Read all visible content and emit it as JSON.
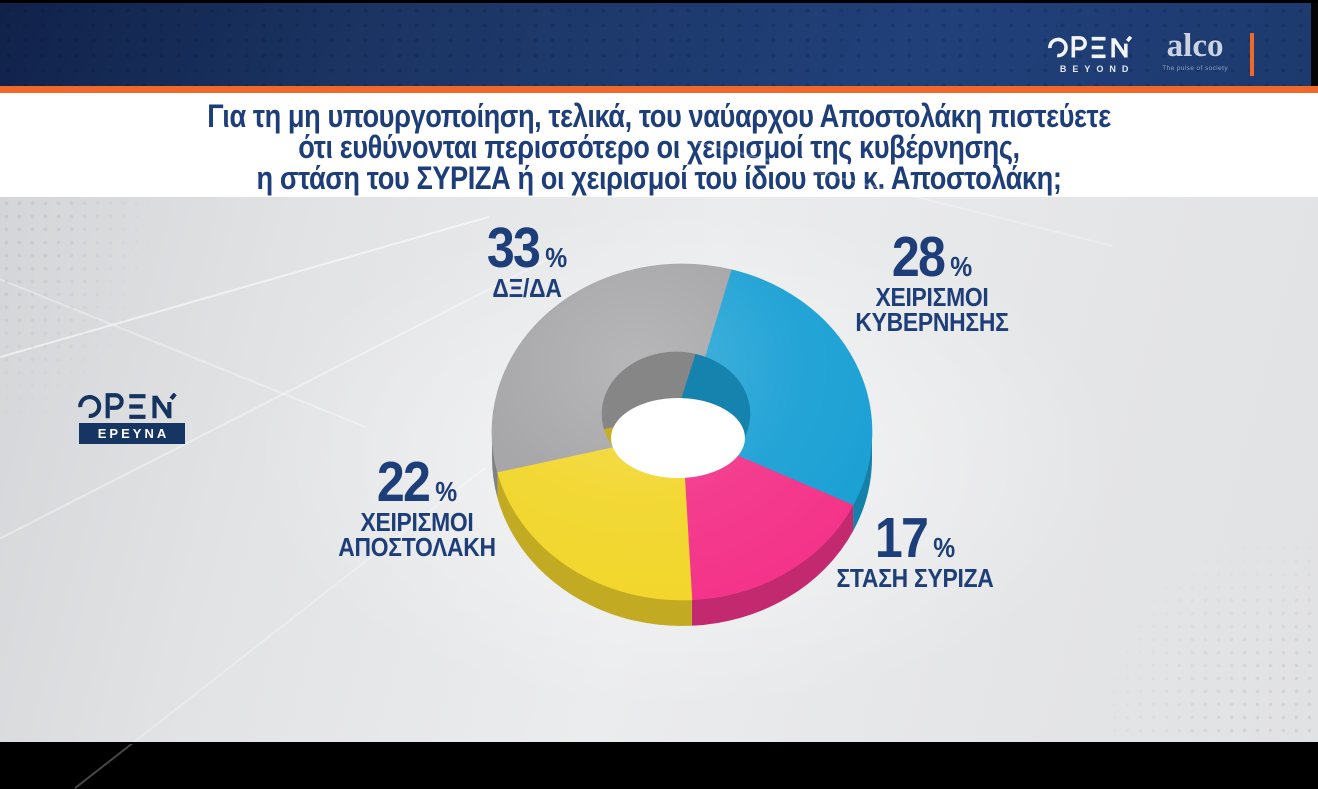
{
  "header": {
    "open": {
      "brand": "OPEN",
      "tagline": "BEYOND"
    },
    "alco": {
      "brand": "alco",
      "tagline": "The pulse of society"
    }
  },
  "question": {
    "line1": "Για τη μη υπουργοποίηση, τελικά, του ναύαρχου Αποστολάκη πιστεύετε",
    "line2": "ότι ευθύνονται περισσότερο οι χειρισμοί της κυβέρνησης,",
    "line3": "η στάση του ΣΥΡΙΖΑ ή οι χειρισμοί του ίδιου του κ. Αποστολάκη;"
  },
  "watermark": {
    "brand": "OPEN",
    "badge": "ΕΡΕΥΝΑ"
  },
  "chart_data": {
    "type": "pie",
    "donut": true,
    "unit": "%",
    "title": "Για τη μη υπουργοποίηση, τελικά, του ναύαρχου Αποστολάκη πιστεύετε ότι ευθύνονται περισσότερο οι χειρισμοί της κυβέρνησης, η στάση του ΣΥΡΙΖΑ ή οι χειρισμοί του ίδιου του κ. Αποστολάκη;",
    "start_angle_deg": 15,
    "direction": "clockwise-from-top",
    "slices": [
      {
        "label": "ΧΕΙΡΙΣΜΟΙ ΚΥΒΕΡΝΗΣΗΣ",
        "label_lines": [
          "ΧΕΙΡΙΣΜΟΙ",
          "ΚΥΒΕΡΝΗΣΗΣ"
        ],
        "value": 28,
        "color": "#1aa0d4"
      },
      {
        "label": "ΣΤΑΣΗ ΣΥΡΙΖΑ",
        "label_lines": [
          "ΣΤΑΣΗ ΣΥΡΙΖΑ"
        ],
        "value": 17,
        "color": "#f43389"
      },
      {
        "label": "ΧΕΙΡΙΣΜΟΙ ΑΠΟΣΤΟΛΑΚΗ",
        "label_lines": [
          "ΧΕΙΡΙΣΜΟΙ",
          "ΑΠΟΣΤΟΛΑΚΗ"
        ],
        "value": 22,
        "color": "#f2d62b"
      },
      {
        "label": "ΔΞ/ΔΑ",
        "label_lines": [
          "ΔΞ/ΔΑ"
        ],
        "value": 33,
        "color": "#a3a3a5"
      }
    ],
    "colors": {
      "accent_orange": "#f0682a",
      "text_navy": "#1d3e78",
      "header_navy": "#1f3a6b"
    }
  }
}
